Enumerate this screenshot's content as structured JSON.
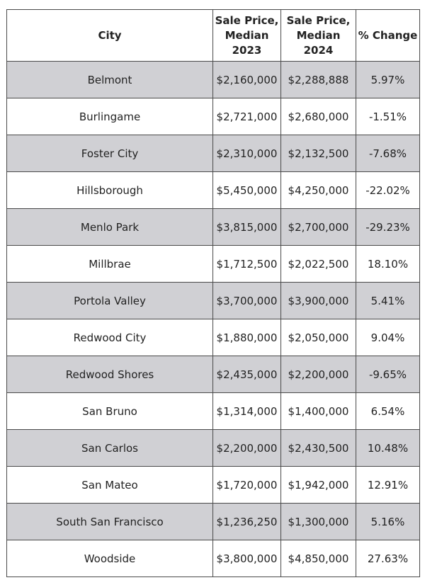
{
  "table": {
    "headers": {
      "city": "City",
      "price_2023": [
        "Sale Price,",
        "Median",
        "2023"
      ],
      "price_2024": [
        "Sale Price,",
        "Median",
        "2024"
      ],
      "change": "% Change"
    },
    "rows": [
      {
        "city": "Belmont",
        "p2023": "$2,160,000",
        "p2024": "$2,288,888",
        "change": "5.97%"
      },
      {
        "city": "Burlingame",
        "p2023": "$2,721,000",
        "p2024": "$2,680,000",
        "change": "-1.51%"
      },
      {
        "city": "Foster City",
        "p2023": "$2,310,000",
        "p2024": "$2,132,500",
        "change": "-7.68%"
      },
      {
        "city": "Hillsborough",
        "p2023": "$5,450,000",
        "p2024": "$4,250,000",
        "change": "-22.02%"
      },
      {
        "city": "Menlo Park",
        "p2023": "$3,815,000",
        "p2024": "$2,700,000",
        "change": "-29.23%"
      },
      {
        "city": "Millbrae",
        "p2023": "$1,712,500",
        "p2024": "$2,022,500",
        "change": "18.10%"
      },
      {
        "city": "Portola Valley",
        "p2023": "$3,700,000",
        "p2024": "$3,900,000",
        "change": "5.41%"
      },
      {
        "city": "Redwood City",
        "p2023": "$1,880,000",
        "p2024": "$2,050,000",
        "change": "9.04%"
      },
      {
        "city": "Redwood Shores",
        "p2023": "$2,435,000",
        "p2024": "$2,200,000",
        "change": "-9.65%"
      },
      {
        "city": "San Bruno",
        "p2023": "$1,314,000",
        "p2024": "$1,400,000",
        "change": "6.54%"
      },
      {
        "city": "San Carlos",
        "p2023": "$2,200,000",
        "p2024": "$2,430,500",
        "change": "10.48%"
      },
      {
        "city": "San Mateo",
        "p2023": "$1,720,000",
        "p2024": "$1,942,000",
        "change": "12.91%"
      },
      {
        "city": "South San Francisco",
        "p2023": "$1,236,250",
        "p2024": "$1,300,000",
        "change": "5.16%"
      },
      {
        "city": "Woodside",
        "p2023": "$3,800,000",
        "p2024": "$4,850,000",
        "change": "27.63%"
      }
    ]
  },
  "colors": {
    "shaded_row": "#d0d0d4",
    "plain_row": "#ffffff",
    "border": "#4a4a4a"
  }
}
